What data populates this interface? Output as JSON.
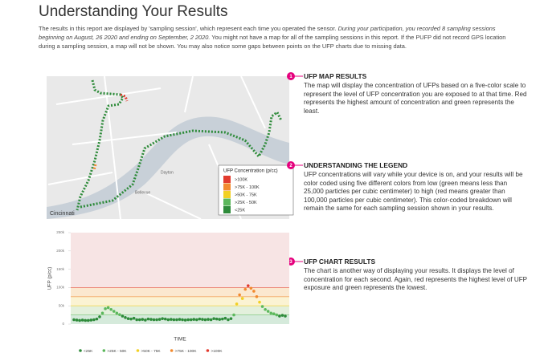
{
  "title": "Understanding Your Results",
  "intro": [
    "The results in this report are displayed by 'sampling session', which represent each time you operated the sensor. ",
    "During your participation, you recorded 8 sampling sessions beginning on August, 26 2020 and ending on September, 2 2020.",
    " You might not have a map for all of the sampling sessions in this report. If the PUFP did not record GPS location during a sampling session, a map will not be shown. You may also notice some gaps between points on the UFP charts due to missing data."
  ],
  "sections": [
    {
      "number": 1,
      "heading": "UFP MAP RESULTS",
      "body": "The map will display the concentration of UFPs based on a five-color scale to represent the level of UFP concentration you are exposed to at that time. Red represents the highest amount of concentration and green represents the least."
    },
    {
      "number": 2,
      "heading": "UNDERSTANDING THE LEGEND",
      "body": "UFP concentrations will vary while your device is on, and your results will be color coded using five different colors from low (green means less than 25,000 particles per cubic centimeter) to high (red means greater than 100,000 particles per cubic centimeter). This color-coded breakdown will remain the same for each sampling session shown in your results."
    },
    {
      "number": 3,
      "heading": "UFP CHART RESULTS",
      "body": "The chart is another way of displaying your results. It displays the level of concentration for each second. Again, red represents the highest level of UFP exposure and green represents the lowest."
    }
  ],
  "map": {
    "places": [
      "Cincinnati",
      "Dayton",
      "Bellevue"
    ],
    "legend_title": "UFP Concentration (p/cc)"
  },
  "bands": [
    {
      "label": "<25K",
      "from": 0,
      "color": "#2e8b3a",
      "tint": "#d5eadb"
    },
    {
      "label": ">25K - 50K",
      "from": 25000,
      "color": "#5cb85c",
      "tint": "#e3f0dc"
    },
    {
      "label": ">50K - 75K",
      "from": 50000,
      "color": "#f2d024",
      "tint": "#fbf3d3"
    },
    {
      "label": ">75K - 100K",
      "from": 75000,
      "color": "#f28a2e",
      "tint": "#fbe8cf"
    },
    {
      "label": ">100K",
      "from": 100000,
      "color": "#e23b2e",
      "tint": "#f7e4e4"
    }
  ],
  "chart_data": {
    "type": "scatter",
    "ylabel": "UFP (p/cc)",
    "xlabel": "TIME",
    "ylim": [
      0,
      250000
    ],
    "yticks": [
      {
        "value": 0,
        "label": "0"
      },
      {
        "value": 50000,
        "label": "50k"
      },
      {
        "value": 100000,
        "label": "100k"
      },
      {
        "value": 150000,
        "label": "150k"
      },
      {
        "value": 200000,
        "label": "200k"
      },
      {
        "value": 250000,
        "label": "250k"
      }
    ],
    "values": [
      12000,
      11000,
      10000,
      11000,
      10000,
      10000,
      11000,
      12000,
      14000,
      20000,
      30000,
      42000,
      45000,
      40000,
      35000,
      30000,
      26000,
      22000,
      18000,
      15000,
      14000,
      16000,
      12000,
      12000,
      13000,
      11000,
      14000,
      13000,
      12000,
      12000,
      13000,
      15000,
      14000,
      12000,
      13000,
      12000,
      12000,
      13000,
      12000,
      11000,
      12000,
      12000,
      13000,
      12000,
      14000,
      13000,
      12000,
      13000,
      12000,
      15000,
      14000,
      13000,
      14000,
      16000,
      12000,
      15000,
      25000,
      55000,
      80000,
      70000,
      95000,
      105000,
      98000,
      90000,
      75000,
      60000,
      48000,
      40000,
      35000,
      30000,
      28000,
      25000,
      22000,
      24000,
      22000
    ]
  }
}
